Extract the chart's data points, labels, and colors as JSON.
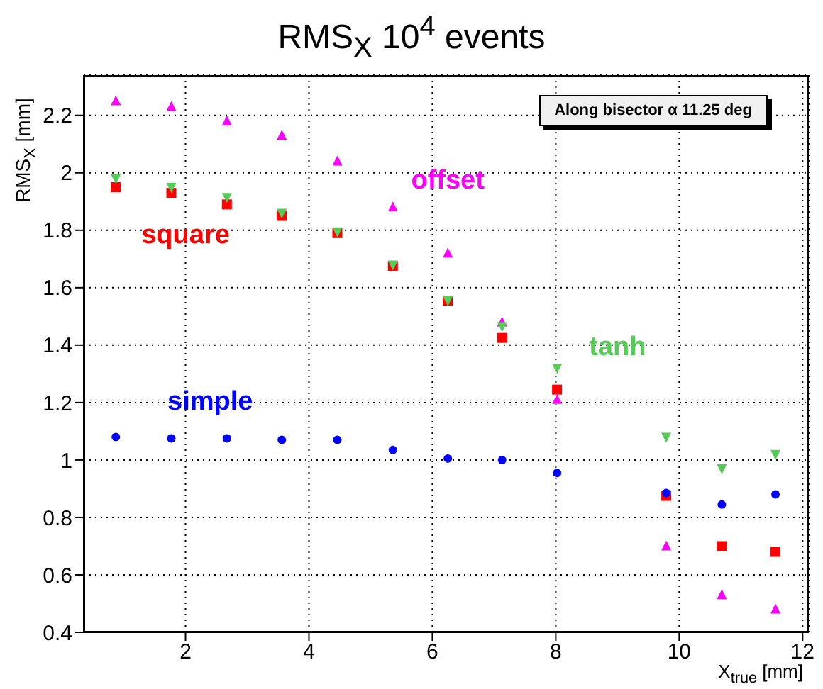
{
  "chart_data": {
    "type": "scatter",
    "title": "RMS$_{X}$ 10$^{4}$ events",
    "xlabel": "X$_{true}$ [mm]",
    "ylabel": "RMS$_{X}$ [mm]",
    "annotations": [
      "Along bisector α 11.25 deg"
    ],
    "x": [
      0.87,
      1.77,
      2.67,
      3.56,
      4.46,
      5.36,
      6.25,
      7.13,
      8.02,
      9.79,
      10.69,
      11.56
    ],
    "series": [
      {
        "name": "offset",
        "color": "#ff00ff",
        "marker": "triangle",
        "values": [
          2.25,
          2.23,
          2.18,
          2.13,
          2.04,
          1.88,
          1.72,
          1.48,
          1.21,
          0.7,
          0.53,
          0.48
        ]
      },
      {
        "name": "square",
        "color": "#ff0000",
        "marker": "square",
        "values": [
          1.95,
          1.93,
          1.89,
          1.85,
          1.79,
          1.675,
          1.555,
          1.425,
          1.245,
          0.875,
          0.7,
          0.68
        ]
      },
      {
        "name": "tanh",
        "color": "#55cc55",
        "marker": "triangle-down",
        "values": [
          1.98,
          1.95,
          1.915,
          1.86,
          1.795,
          1.68,
          1.555,
          1.465,
          1.32,
          1.08,
          0.97,
          1.02
        ]
      },
      {
        "name": "simple",
        "color": "#0000ff",
        "marker": "circle",
        "values": [
          1.08,
          1.075,
          1.075,
          1.07,
          1.07,
          1.035,
          1.005,
          1.0,
          0.955,
          0.885,
          0.845,
          0.88
        ]
      }
    ],
    "xlim": [
      0.35,
      12.1
    ],
    "xticks": [
      2,
      4,
      6,
      8,
      10,
      12
    ],
    "ylim": [
      0.4,
      2.34
    ],
    "yticks": [
      0.4,
      0.6,
      0.8,
      1,
      1.2,
      1.4,
      1.6,
      1.8,
      2,
      2.2
    ],
    "grid": true
  }
}
